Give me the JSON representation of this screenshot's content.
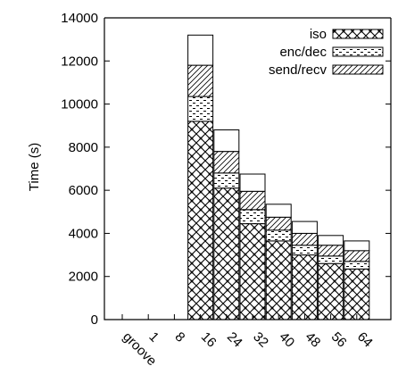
{
  "chart_data": {
    "type": "bar",
    "stacked": true,
    "ylabel": "Time (s)",
    "xlabel": "",
    "ylim": [
      0,
      14000
    ],
    "yticks": [
      0,
      2000,
      4000,
      6000,
      8000,
      10000,
      12000,
      14000
    ],
    "categories": [
      "groove",
      "1",
      "8",
      "16",
      "24",
      "32",
      "40",
      "48",
      "56",
      "64"
    ],
    "legend_position": "top-right",
    "series": [
      {
        "name": "iso",
        "pattern": "crosshatch",
        "values": [
          0,
          0,
          0,
          9200,
          6100,
          4450,
          3650,
          3000,
          2600,
          2350
        ]
      },
      {
        "name": "enc/dec",
        "pattern": "dashes",
        "values": [
          0,
          0,
          0,
          1150,
          700,
          650,
          500,
          450,
          350,
          350
        ]
      },
      {
        "name": "send/recv",
        "pattern": "diagonal",
        "values": [
          0,
          0,
          0,
          1450,
          1000,
          850,
          600,
          550,
          500,
          500
        ]
      },
      {
        "name": "",
        "pattern": "blank",
        "values": [
          0,
          0,
          0,
          1400,
          1000,
          800,
          600,
          550,
          450,
          450
        ]
      }
    ]
  }
}
